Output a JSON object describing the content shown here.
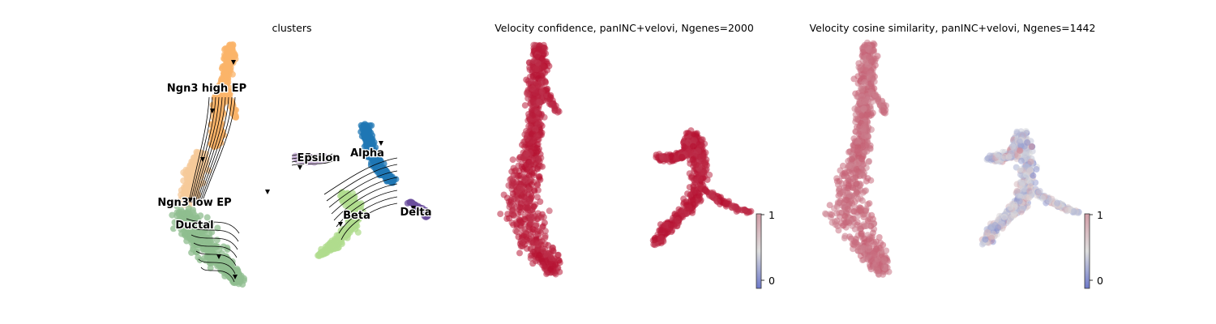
{
  "figure": {
    "panels": [
      {
        "title": "clusters"
      },
      {
        "title": "Velocity confidence, panINC+velovi, Ngenes=2000"
      },
      {
        "title": "Velocity cosine similarity, panINC+velovi, Ngenes=1442"
      }
    ]
  },
  "chart_data": [
    {
      "type": "scatter",
      "subtype": "umap-embedding-with-velocity-streamlines",
      "title": "clusters",
      "clusters": [
        {
          "name": "Ngn3 high EP",
          "color": "#fbb46a"
        },
        {
          "name": "Ngn3 low EP",
          "color": "#f5c999"
        },
        {
          "name": "Ductal",
          "color": "#8fbe8f"
        },
        {
          "name": "Epsilon",
          "color": "#c7b0d6"
        },
        {
          "name": "Alpha",
          "color": "#1f77b4"
        },
        {
          "name": "Beta",
          "color": "#b0dc8e"
        },
        {
          "name": "Delta",
          "color": "#6a4c9c"
        }
      ],
      "legend": "on data",
      "grid": false,
      "axes_visible": false
    },
    {
      "type": "scatter",
      "subtype": "umap-embedding-colored-by-value",
      "title": "Velocity confidence, panINC+velovi, Ngenes=2000",
      "colormap": "coolwarm",
      "colorbar": {
        "min": 0,
        "max": 1,
        "ticks": [
          "1",
          "0"
        ]
      },
      "values_summary": "nearly all cells near 1 (dark red)",
      "grid": false,
      "axes_visible": false
    },
    {
      "type": "scatter",
      "subtype": "umap-embedding-colored-by-value",
      "title": "Velocity cosine similarity, panINC+velovi, Ngenes=1442",
      "colormap": "coolwarm",
      "colorbar": {
        "min": 0,
        "max": 1,
        "ticks": [
          "1",
          "0"
        ]
      },
      "values_summary": "left branch ~0.7-0.8 (salmon); right branch mixed 0-0.6 (blue to light)",
      "grid": false,
      "axes_visible": false
    }
  ]
}
